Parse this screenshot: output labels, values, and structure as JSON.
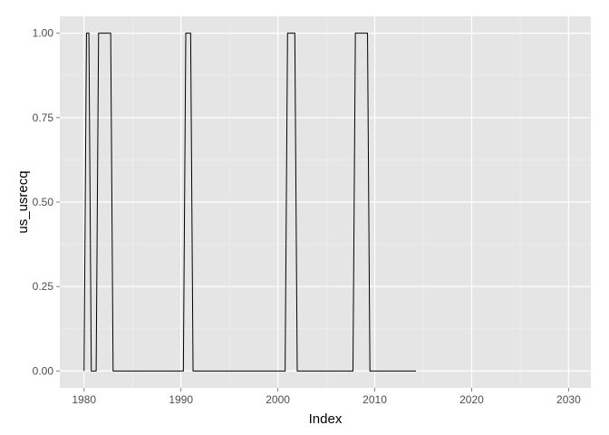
{
  "chart_data": {
    "type": "line",
    "title": "",
    "xlabel": "Index",
    "ylabel": "us_usrecq",
    "xlim": [
      1977.5,
      2032.3
    ],
    "ylim": [
      -0.05,
      1.05
    ],
    "x_ticks": [
      1980,
      1990,
      2000,
      2010,
      2020,
      2030
    ],
    "x_tick_labels": [
      "1980",
      "1990",
      "2000",
      "2010",
      "2020",
      "2030"
    ],
    "y_ticks": [
      0.0,
      0.25,
      0.5,
      0.75,
      1.0
    ],
    "y_tick_labels": [
      "0.00",
      "0.25",
      "0.50",
      "0.75",
      "1.00"
    ],
    "grid": true,
    "legend": "none",
    "colors": {
      "panel_background": "#e5e5e5",
      "grid_major": "#ffffff",
      "grid_minor": "#f2f2f2",
      "line": "#000000"
    },
    "series": [
      {
        "x": [
          1980.0,
          1980.25,
          1980.5,
          1980.75,
          1981.0,
          1981.25,
          1981.5,
          1981.75,
          1982.0,
          1982.25,
          1982.5,
          1982.75,
          1983.0,
          1983.25,
          1990.25,
          1990.5,
          1990.75,
          1991.0,
          1991.25,
          2000.75,
          2001.0,
          2001.25,
          2001.5,
          2001.75,
          2002.0,
          2007.75,
          2008.0,
          2008.25,
          2008.5,
          2008.75,
          2009.0,
          2009.25,
          2009.5,
          2014.25
        ],
        "y": [
          0,
          1,
          1,
          0,
          0,
          0,
          1,
          1,
          1,
          1,
          1,
          1,
          0,
          0,
          0,
          1,
          1,
          1,
          0,
          0,
          1,
          1,
          1,
          1,
          0,
          0,
          1,
          1,
          1,
          1,
          1,
          1,
          0,
          0
        ]
      }
    ]
  }
}
